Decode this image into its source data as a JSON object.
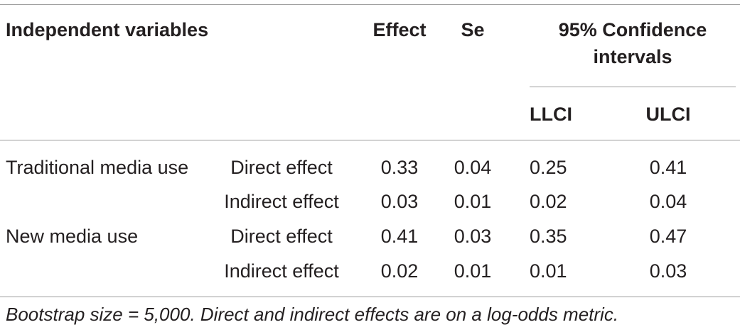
{
  "header": {
    "independent_variables": "Independent variables",
    "effect": "Effect",
    "se": "Se",
    "ci_line1": "95% Confidence",
    "ci_line2": "intervals",
    "llci": "LLCI",
    "ulci": "ULCI"
  },
  "rows": [
    {
      "variable": "Traditional media use",
      "type": "Direct effect",
      "effect": "0.33",
      "se": "0.04",
      "llci": "0.25",
      "ulci": "0.41"
    },
    {
      "variable": "",
      "type": "Indirect effect",
      "effect": "0.03",
      "se": "0.01",
      "llci": "0.02",
      "ulci": "0.04"
    },
    {
      "variable": "New media use",
      "type": "Direct effect",
      "effect": "0.41",
      "se": "0.03",
      "llci": "0.35",
      "ulci": "0.47"
    },
    {
      "variable": "",
      "type": "Indirect effect",
      "effect": "0.02",
      "se": "0.01",
      "llci": "0.01",
      "ulci": "0.03"
    }
  ],
  "footnote": "Bootstrap size = 5,000. Direct and indirect effects are on a log-odds metric."
}
